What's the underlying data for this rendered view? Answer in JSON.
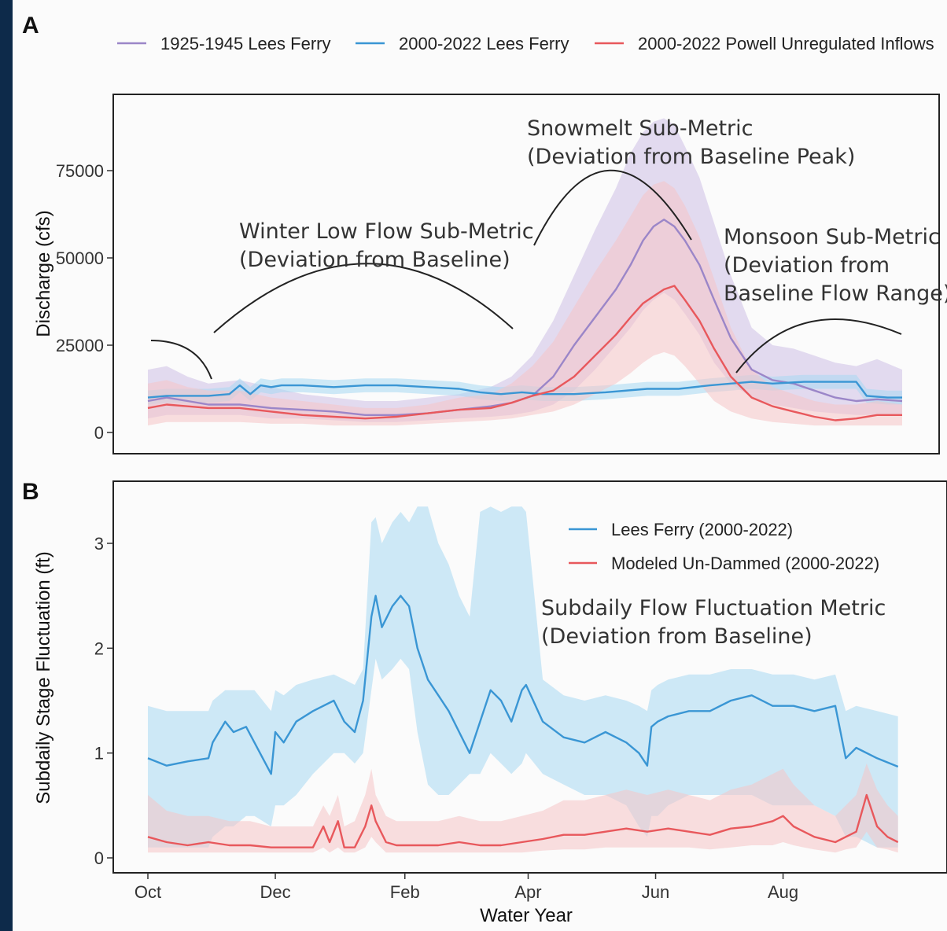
{
  "chart_data": [
    {
      "panel": "A",
      "type": "line",
      "ylabel": "Discharge (cfs)",
      "ylim": [
        0,
        95000
      ],
      "yticks": [
        "0",
        "25000",
        "50000",
        "75000"
      ],
      "ytick_values": [
        0,
        25000,
        50000,
        75000
      ],
      "x_ticks": [
        "Oct",
        "Dec",
        "Feb",
        "Apr",
        "Jun",
        "Aug"
      ],
      "x_tick_days": [
        1,
        62,
        124,
        183,
        244,
        305
      ],
      "legend": [
        {
          "name": "1925-1945 Lees Ferry",
          "color": "#9b86c8"
        },
        {
          "name": "2000-2022 Lees Ferry",
          "color": "#3a96d4"
        },
        {
          "name": "2000-2022 Powell Unregulated Inflows",
          "color": "#e8585c"
        }
      ],
      "series": [
        {
          "name": "1925-1945 Lees Ferry",
          "color": "#9b86c8",
          "band_color": "#cdbfe6",
          "x": [
            1,
            10,
            20,
            30,
            45,
            60,
            75,
            90,
            105,
            120,
            135,
            150,
            165,
            175,
            185,
            195,
            205,
            215,
            225,
            232,
            238,
            243,
            248,
            253,
            258,
            265,
            272,
            280,
            290,
            300,
            310,
            320,
            330,
            340,
            350,
            362
          ],
          "y": [
            9000,
            10000,
            9000,
            8000,
            8000,
            7000,
            6500,
            6000,
            5000,
            5000,
            5500,
            6500,
            7500,
            8500,
            10500,
            16000,
            25000,
            33000,
            41000,
            48000,
            55000,
            59000,
            61000,
            59000,
            55000,
            48000,
            38000,
            27000,
            18000,
            15000,
            14000,
            12000,
            10000,
            9000,
            9500,
            9000
          ],
          "lower": [
            4000,
            5000,
            5000,
            5000,
            5000,
            4000,
            4000,
            3500,
            3000,
            3000,
            3500,
            4000,
            4500,
            5000,
            6000,
            8000,
            12000,
            18000,
            25000,
            30000,
            35000,
            38000,
            40000,
            38000,
            34000,
            28000,
            20000,
            14000,
            10000,
            8000,
            7000,
            6000,
            5500,
            5000,
            5000,
            5000
          ],
          "upper": [
            18000,
            19000,
            16000,
            14000,
            15000,
            13000,
            11000,
            10000,
            9000,
            9000,
            10000,
            11000,
            13000,
            16000,
            22000,
            32000,
            45000,
            58000,
            70000,
            80000,
            86000,
            89000,
            90000,
            88000,
            82000,
            73000,
            60000,
            45000,
            30000,
            25000,
            24000,
            22000,
            20000,
            19000,
            21000,
            18000
          ]
        },
        {
          "name": "2000-2022 Lees Ferry",
          "color": "#3a96d4",
          "band_color": "#a8d8f2",
          "x": [
            1,
            10,
            20,
            30,
            40,
            45,
            50,
            55,
            60,
            65,
            75,
            90,
            105,
            120,
            135,
            150,
            160,
            170,
            180,
            190,
            205,
            220,
            240,
            255,
            270,
            280,
            290,
            300,
            315,
            330,
            340,
            345,
            355,
            362
          ],
          "y": [
            10000,
            10500,
            10500,
            10500,
            11000,
            13500,
            11000,
            13500,
            13000,
            13500,
            13500,
            13000,
            13500,
            13500,
            13000,
            12500,
            11500,
            11000,
            11500,
            11000,
            11000,
            11500,
            12500,
            12500,
            13500,
            14000,
            14500,
            14000,
            14500,
            14500,
            14500,
            10500,
            10000,
            10000
          ],
          "lower": [
            8000,
            8500,
            8500,
            8500,
            9000,
            11500,
            9000,
            11500,
            11000,
            11500,
            11500,
            11000,
            11500,
            11500,
            11000,
            10500,
            9500,
            9000,
            9500,
            9000,
            9000,
            9500,
            10500,
            10500,
            11500,
            12000,
            12500,
            12000,
            12500,
            12500,
            12500,
            8500,
            8000,
            8000
          ],
          "upper": [
            12000,
            12500,
            12500,
            12500,
            13000,
            15500,
            13000,
            15500,
            15000,
            15500,
            15500,
            15000,
            15500,
            15500,
            15000,
            14500,
            13500,
            13000,
            13500,
            13000,
            13000,
            13500,
            14500,
            14500,
            15500,
            16000,
            16500,
            16000,
            16500,
            16500,
            16500,
            12500,
            12000,
            12000
          ]
        },
        {
          "name": "2000-2022 Powell Unregulated Inflows",
          "color": "#e8585c",
          "band_color": "#f6c5c6",
          "x": [
            1,
            10,
            20,
            30,
            45,
            60,
            75,
            90,
            105,
            120,
            135,
            150,
            165,
            175,
            185,
            195,
            205,
            215,
            225,
            232,
            238,
            243,
            248,
            253,
            258,
            265,
            272,
            280,
            290,
            300,
            310,
            320,
            330,
            340,
            350,
            362
          ],
          "y": [
            7000,
            8000,
            7500,
            7000,
            7000,
            6000,
            5000,
            4500,
            4000,
            4500,
            5500,
            6500,
            7000,
            8500,
            10500,
            12000,
            16000,
            22000,
            28000,
            33000,
            37000,
            39000,
            41000,
            42000,
            38000,
            32000,
            24000,
            16000,
            10000,
            7500,
            6000,
            4500,
            3500,
            4000,
            5000,
            5000
          ],
          "lower": [
            2000,
            3000,
            3000,
            3000,
            3000,
            2500,
            2500,
            2000,
            2000,
            2000,
            2500,
            3000,
            3500,
            4000,
            5000,
            6000,
            8000,
            11000,
            14000,
            17000,
            20000,
            22000,
            23000,
            22000,
            19000,
            14000,
            9000,
            6000,
            4000,
            3000,
            2500,
            2000,
            2000,
            2000,
            2000,
            2000
          ],
          "upper": [
            14000,
            15000,
            13000,
            12000,
            12000,
            10000,
            9000,
            8000,
            7000,
            7000,
            8000,
            10000,
            11000,
            14000,
            19000,
            26000,
            36000,
            46000,
            55000,
            62000,
            68000,
            71000,
            72000,
            70000,
            65000,
            56000,
            44000,
            30000,
            18000,
            13000,
            11000,
            9000,
            8000,
            8000,
            9000,
            8000
          ]
        }
      ],
      "annotations": [
        {
          "lines": [
            "Winter Low Flow Sub-Metric",
            "(Deviation from Baseline)"
          ]
        },
        {
          "lines": [
            "Snowmelt Sub-Metric",
            "(Deviation from Baseline Peak)"
          ]
        },
        {
          "lines": [
            "Monsoon Sub-Metric",
            "(Deviation from",
            "Baseline Flow Range)"
          ]
        }
      ]
    },
    {
      "panel": "B",
      "type": "line",
      "xlabel": "Water Year",
      "ylabel": "Subdaily Stage Fluctuation (ft)",
      "ylim": [
        -0.15,
        3.5
      ],
      "yticks": [
        "0",
        "1",
        "2",
        "3"
      ],
      "ytick_values": [
        0,
        1,
        2,
        3
      ],
      "x_ticks": [
        "Oct",
        "Dec",
        "Feb",
        "Apr",
        "Jun",
        "Aug"
      ],
      "x_tick_days": [
        1,
        62,
        124,
        183,
        244,
        305
      ],
      "legend": [
        {
          "name": "Lees Ferry (2000-2022)",
          "color": "#3a96d4"
        },
        {
          "name": "Modeled Un-Dammed (2000-2022)",
          "color": "#e8585c"
        }
      ],
      "series": [
        {
          "name": "Lees Ferry (2000-2022)",
          "color": "#3a96d4",
          "band_color": "#a8d8f2",
          "x": [
            1,
            10,
            20,
            30,
            32,
            38,
            42,
            48,
            52,
            56,
            60,
            62,
            66,
            72,
            80,
            90,
            95,
            100,
            104,
            108,
            110,
            113,
            118,
            122,
            126,
            130,
            135,
            140,
            145,
            150,
            155,
            160,
            165,
            170,
            175,
            180,
            182,
            190,
            200,
            210,
            220,
            230,
            236,
            240,
            242,
            245,
            250,
            260,
            270,
            280,
            290,
            300,
            310,
            320,
            330,
            335,
            340,
            350,
            360
          ],
          "y": [
            0.95,
            0.88,
            0.92,
            0.95,
            1.1,
            1.3,
            1.2,
            1.25,
            1.1,
            0.95,
            0.8,
            1.2,
            1.1,
            1.3,
            1.4,
            1.5,
            1.3,
            1.2,
            1.5,
            2.3,
            2.5,
            2.2,
            2.4,
            2.5,
            2.4,
            2.0,
            1.7,
            1.55,
            1.4,
            1.2,
            1.0,
            1.3,
            1.6,
            1.5,
            1.3,
            1.6,
            1.65,
            1.3,
            1.15,
            1.1,
            1.2,
            1.1,
            1.0,
            0.88,
            1.25,
            1.3,
            1.35,
            1.4,
            1.4,
            1.5,
            1.55,
            1.45,
            1.45,
            1.4,
            1.45,
            0.95,
            1.05,
            0.95,
            0.87
          ],
          "lower": [
            0.1,
            0.1,
            0.1,
            0.1,
            0.2,
            0.3,
            0.3,
            0.4,
            0.4,
            0.35,
            0.3,
            0.5,
            0.5,
            0.6,
            0.8,
            1.0,
            1.0,
            0.9,
            1.0,
            1.6,
            1.9,
            1.7,
            1.8,
            1.9,
            1.8,
            1.2,
            0.7,
            0.6,
            0.6,
            0.7,
            0.8,
            0.8,
            1.0,
            0.9,
            0.8,
            0.9,
            1.0,
            0.8,
            0.7,
            0.6,
            0.6,
            0.5,
            0.3,
            0.2,
            0.4,
            0.4,
            0.5,
            0.6,
            0.6,
            0.6,
            0.6,
            0.5,
            0.5,
            0.5,
            0.4,
            0.2,
            0.2,
            0.1,
            0.1
          ],
          "upper": [
            1.45,
            1.4,
            1.4,
            1.4,
            1.5,
            1.6,
            1.6,
            1.6,
            1.6,
            1.5,
            1.4,
            1.6,
            1.55,
            1.65,
            1.7,
            1.75,
            1.7,
            1.65,
            1.8,
            3.2,
            3.25,
            3.0,
            3.2,
            3.3,
            3.2,
            3.35,
            3.35,
            3.0,
            2.8,
            2.5,
            2.3,
            3.3,
            3.35,
            3.3,
            3.35,
            3.35,
            3.3,
            1.7,
            1.55,
            1.5,
            1.55,
            1.5,
            1.45,
            1.4,
            1.6,
            1.65,
            1.7,
            1.75,
            1.75,
            1.8,
            1.8,
            1.75,
            1.75,
            1.7,
            1.75,
            1.4,
            1.45,
            1.4,
            1.35
          ]
        },
        {
          "name": "Modeled Un-Dammed (2000-2022)",
          "color": "#e8585c",
          "band_color": "#f6c5c6",
          "x": [
            1,
            10,
            20,
            30,
            40,
            50,
            60,
            70,
            80,
            85,
            88,
            92,
            95,
            100,
            105,
            108,
            110,
            115,
            120,
            130,
            140,
            150,
            160,
            170,
            180,
            190,
            200,
            210,
            220,
            230,
            240,
            250,
            260,
            270,
            280,
            290,
            300,
            305,
            310,
            315,
            320,
            330,
            335,
            340,
            345,
            350,
            355,
            360
          ],
          "y": [
            0.2,
            0.15,
            0.12,
            0.15,
            0.12,
            0.12,
            0.1,
            0.1,
            0.1,
            0.3,
            0.15,
            0.35,
            0.1,
            0.1,
            0.3,
            0.5,
            0.35,
            0.15,
            0.12,
            0.12,
            0.12,
            0.15,
            0.12,
            0.12,
            0.15,
            0.18,
            0.22,
            0.22,
            0.25,
            0.28,
            0.25,
            0.28,
            0.25,
            0.22,
            0.28,
            0.3,
            0.35,
            0.4,
            0.3,
            0.25,
            0.2,
            0.15,
            0.2,
            0.25,
            0.6,
            0.3,
            0.2,
            0.15
          ],
          "lower": [
            0.05,
            0.05,
            0.05,
            0.05,
            0.05,
            0.05,
            0.05,
            0.05,
            0.05,
            0.1,
            0.05,
            0.1,
            0.05,
            0.05,
            0.1,
            0.2,
            0.15,
            0.05,
            0.05,
            0.05,
            0.05,
            0.05,
            0.05,
            0.05,
            0.05,
            0.07,
            0.08,
            0.08,
            0.1,
            0.1,
            0.1,
            0.1,
            0.1,
            0.08,
            0.1,
            0.12,
            0.12,
            0.15,
            0.12,
            0.1,
            0.08,
            0.05,
            0.08,
            0.1,
            0.25,
            0.1,
            0.08,
            0.05
          ],
          "upper": [
            0.6,
            0.45,
            0.4,
            0.4,
            0.35,
            0.35,
            0.3,
            0.3,
            0.3,
            0.5,
            0.4,
            0.6,
            0.3,
            0.35,
            0.6,
            0.85,
            0.6,
            0.4,
            0.35,
            0.35,
            0.35,
            0.4,
            0.35,
            0.35,
            0.4,
            0.45,
            0.55,
            0.55,
            0.6,
            0.65,
            0.6,
            0.65,
            0.6,
            0.55,
            0.65,
            0.7,
            0.8,
            0.85,
            0.7,
            0.6,
            0.5,
            0.4,
            0.5,
            0.6,
            0.9,
            0.65,
            0.5,
            0.4
          ]
        }
      ],
      "annotations": [
        {
          "lines": [
            "Subdaily Flow Fluctuation Metric",
            "(Deviation from Baseline)"
          ]
        }
      ]
    }
  ]
}
